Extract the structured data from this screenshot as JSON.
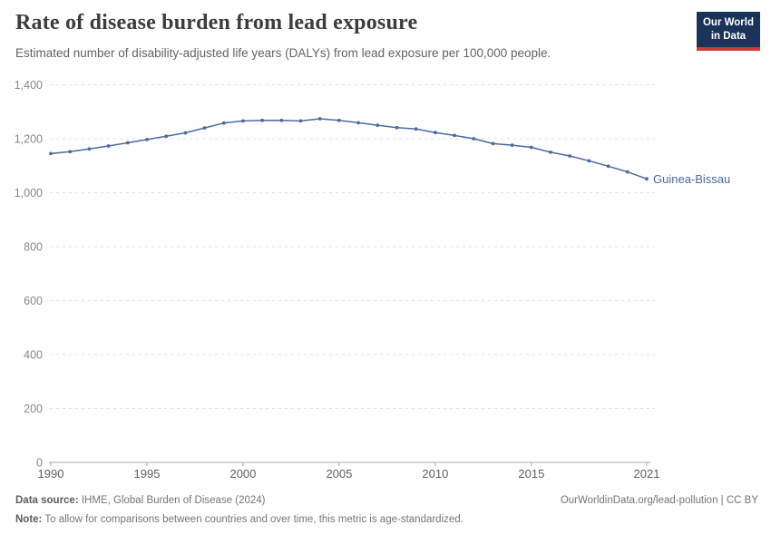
{
  "header": {
    "title": "Rate of disease burden from lead exposure",
    "subtitle": "Estimated number of disability-adjusted life years (DALYs) from lead exposure per 100,000 people.",
    "logo": {
      "line1": "Our World",
      "line2": "in Data",
      "bg_color": "#1a3358",
      "accent_color": "#cc3e35"
    }
  },
  "chart_data": {
    "type": "line",
    "title": "Rate of disease burden from lead exposure",
    "xlabel": "",
    "ylabel": "",
    "xlim": [
      1990,
      2021
    ],
    "ylim": [
      0,
      1400
    ],
    "grid": "horizontal-dashed",
    "legend_position": "end-of-line-label",
    "x_ticks": [
      1990,
      1995,
      2000,
      2005,
      2010,
      2015,
      2021
    ],
    "y_ticks": [
      0,
      200,
      400,
      600,
      800,
      1000,
      1200,
      1400
    ],
    "y_tick_labels": [
      "0",
      "200",
      "400",
      "600",
      "800",
      "1,000",
      "1,200",
      "1,400"
    ],
    "series": [
      {
        "name": "Guinea-Bissau",
        "color": "#4c6a9c",
        "x": [
          1990,
          1991,
          1992,
          1993,
          1994,
          1995,
          1996,
          1997,
          1998,
          1999,
          2000,
          2001,
          2002,
          2003,
          2004,
          2005,
          2006,
          2007,
          2008,
          2009,
          2010,
          2011,
          2012,
          2013,
          2014,
          2015,
          2016,
          2017,
          2018,
          2019,
          2020,
          2021
        ],
        "values": [
          1145,
          1152,
          1162,
          1173,
          1185,
          1197,
          1209,
          1222,
          1240,
          1258,
          1266,
          1268,
          1268,
          1266,
          1274,
          1268,
          1259,
          1250,
          1241,
          1236,
          1223,
          1212,
          1200,
          1182,
          1176,
          1168,
          1150,
          1136,
          1118,
          1098,
          1077,
          1051
        ]
      }
    ],
    "colors": {
      "gridline": "#e0e0e0",
      "axis": "#a8a8a8",
      "y_tick_label": "#878787",
      "x_tick_label": "#5f5f5f"
    }
  },
  "footer": {
    "data_source_label": "Data source:",
    "data_source_value": " IHME, Global Burden of Disease (2024)",
    "link": "OurWorldinData.org/lead-pollution | CC BY",
    "note_label": "Note:",
    "note_value": " To allow for comparisons between countries and over time, this metric is age-standardized."
  }
}
